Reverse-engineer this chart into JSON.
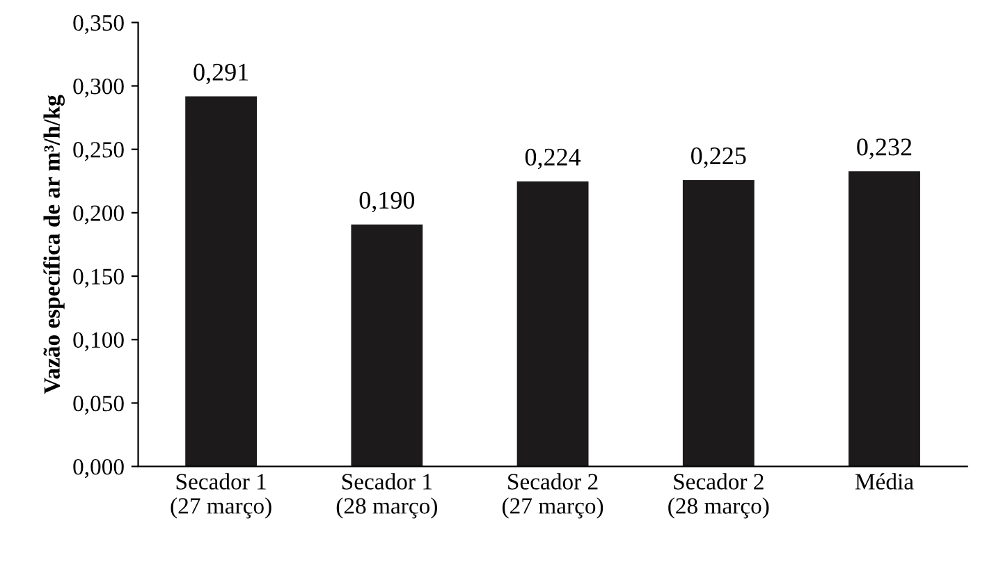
{
  "chart_data": {
    "type": "bar",
    "ylabel": "Vazão específica de ar m³/h/kg",
    "categories": [
      "Secador 1\n(27 março)",
      "Secador 1\n(28 março)",
      "Secador 2\n(27 março)",
      "Secador 2\n(28 março)",
      "Média"
    ],
    "values": [
      0.291,
      0.19,
      0.224,
      0.225,
      0.232
    ],
    "value_labels": [
      "0,291",
      "0,190",
      "0,224",
      "0,225",
      "0,232"
    ],
    "color": "#1c1a1a",
    "ylim": [
      0,
      0.35
    ],
    "yticks": [
      {
        "value": 0,
        "label": "0,000"
      },
      {
        "value": 0.05,
        "label": "0,050"
      },
      {
        "value": 0.1,
        "label": "0,100"
      },
      {
        "value": 0.15,
        "label": "0,150"
      },
      {
        "value": 0.2,
        "label": "0,200"
      },
      {
        "value": 0.25,
        "label": "0,250"
      },
      {
        "value": 0.3,
        "label": "0,300"
      },
      {
        "value": 0.35,
        "label": "0,350"
      }
    ],
    "grid": false,
    "legend": false
  }
}
